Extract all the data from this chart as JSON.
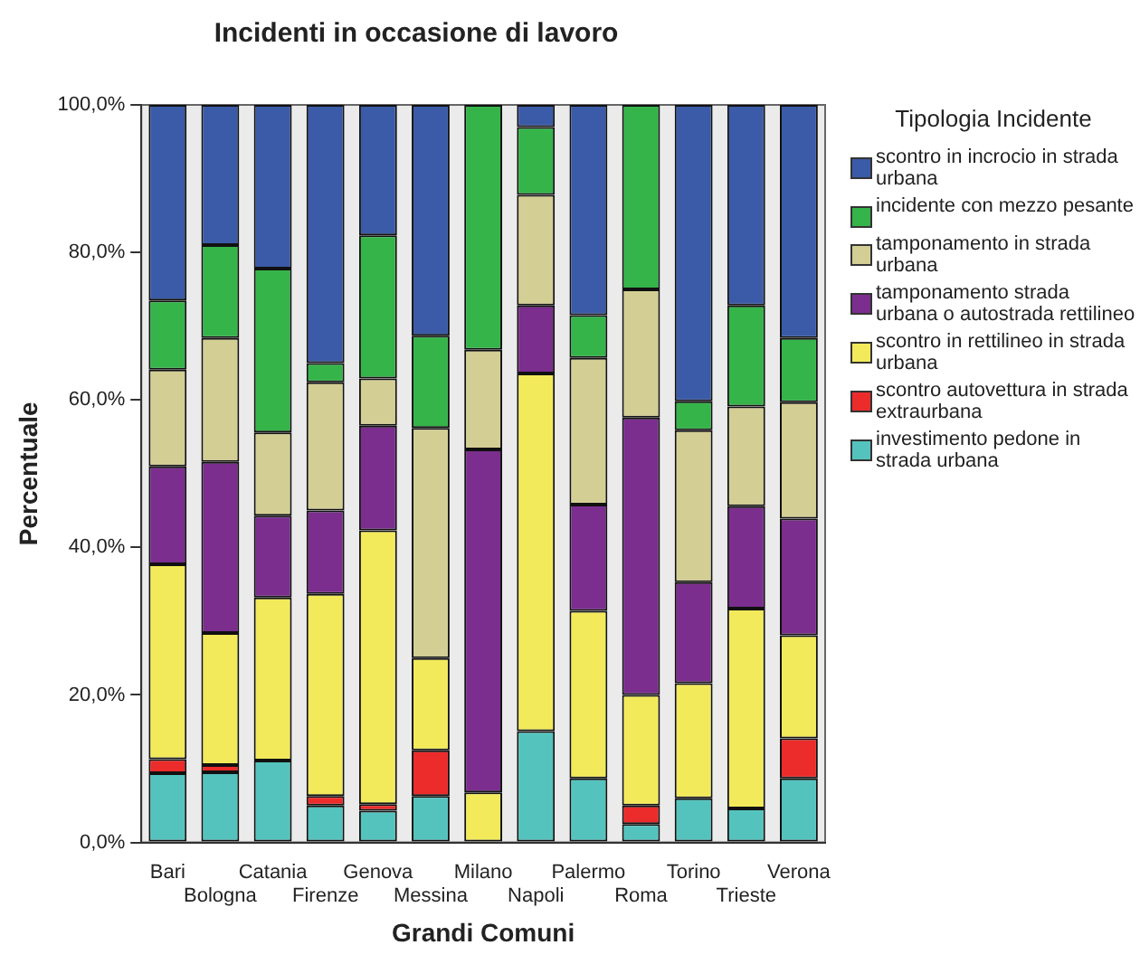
{
  "chart_data": {
    "type": "bar",
    "title": "Incidenti in occasione di lavoro",
    "xlabel": "Grandi Comuni",
    "ylabel": "Percentuale",
    "legend_title": "Tipologia Incidente",
    "legend": "right",
    "stacked": true,
    "grid": false,
    "categories": [
      "Bari",
      "Bologna",
      "Catania",
      "Firenze",
      "Genova",
      "Messina",
      "Milano",
      "Napoli",
      "Palermo",
      "Roma",
      "Torino",
      "Trieste",
      "Verona"
    ],
    "ylim": [
      0,
      100
    ],
    "yticks": [
      {
        "value": 0,
        "label": "0,0%"
      },
      {
        "value": 20,
        "label": "20,0%"
      },
      {
        "value": 40,
        "label": "40,0%"
      },
      {
        "value": 60,
        "label": "60,0%"
      },
      {
        "value": 80,
        "label": "80,0%"
      },
      {
        "value": 100,
        "label": "100,0%"
      }
    ],
    "series": [
      {
        "name": "investimento pedone in strada urbana",
        "color": "#55c3bd",
        "values": [
          9.4,
          9.5,
          11.1,
          5.0,
          4.3,
          6.3,
          0,
          15.1,
          8.7,
          2.5,
          6.0,
          4.6,
          8.7
        ]
      },
      {
        "name": "scontro autovettura in strada extraurbana",
        "color": "#ec2b2b",
        "values": [
          1.9,
          1.0,
          0,
          1.3,
          0.9,
          6.2,
          0,
          0,
          0,
          2.5,
          0,
          0,
          5.4
        ]
      },
      {
        "name": "scontro in rettilineo in strada urbana",
        "color": "#f2ea5a",
        "values": [
          26.4,
          17.9,
          22.1,
          27.4,
          37.1,
          12.5,
          6.8,
          48.5,
          22.7,
          15.0,
          15.6,
          27.1,
          14.0
        ]
      },
      {
        "name": "tamponamento strada urbana o autostrada rettilineo",
        "color": "#7b2e8e",
        "values": [
          13.3,
          23.2,
          11.1,
          11.3,
          14.2,
          0,
          46.5,
          9.2,
          14.4,
          37.6,
          13.7,
          13.9,
          15.8
        ]
      },
      {
        "name": "tamponamento in strada urbana",
        "color": "#d3ce93",
        "values": [
          13.1,
          16.8,
          11.3,
          17.4,
          6.4,
          31.2,
          13.5,
          15.0,
          19.9,
          17.4,
          20.6,
          13.5,
          15.8
        ]
      },
      {
        "name": "incidente con mezzo pesante",
        "color": "#35b44a",
        "values": [
          9.4,
          12.6,
          22.2,
          2.6,
          19.4,
          12.5,
          33.2,
          9.2,
          5.8,
          25.0,
          3.9,
          13.7,
          8.7
        ]
      },
      {
        "name": "scontro in incrocio in strada urbana",
        "color": "#3b5ba8",
        "values": [
          26.5,
          19.0,
          22.2,
          35.0,
          17.7,
          31.3,
          0,
          3.0,
          28.5,
          0,
          40.2,
          27.2,
          31.6
        ]
      }
    ]
  }
}
